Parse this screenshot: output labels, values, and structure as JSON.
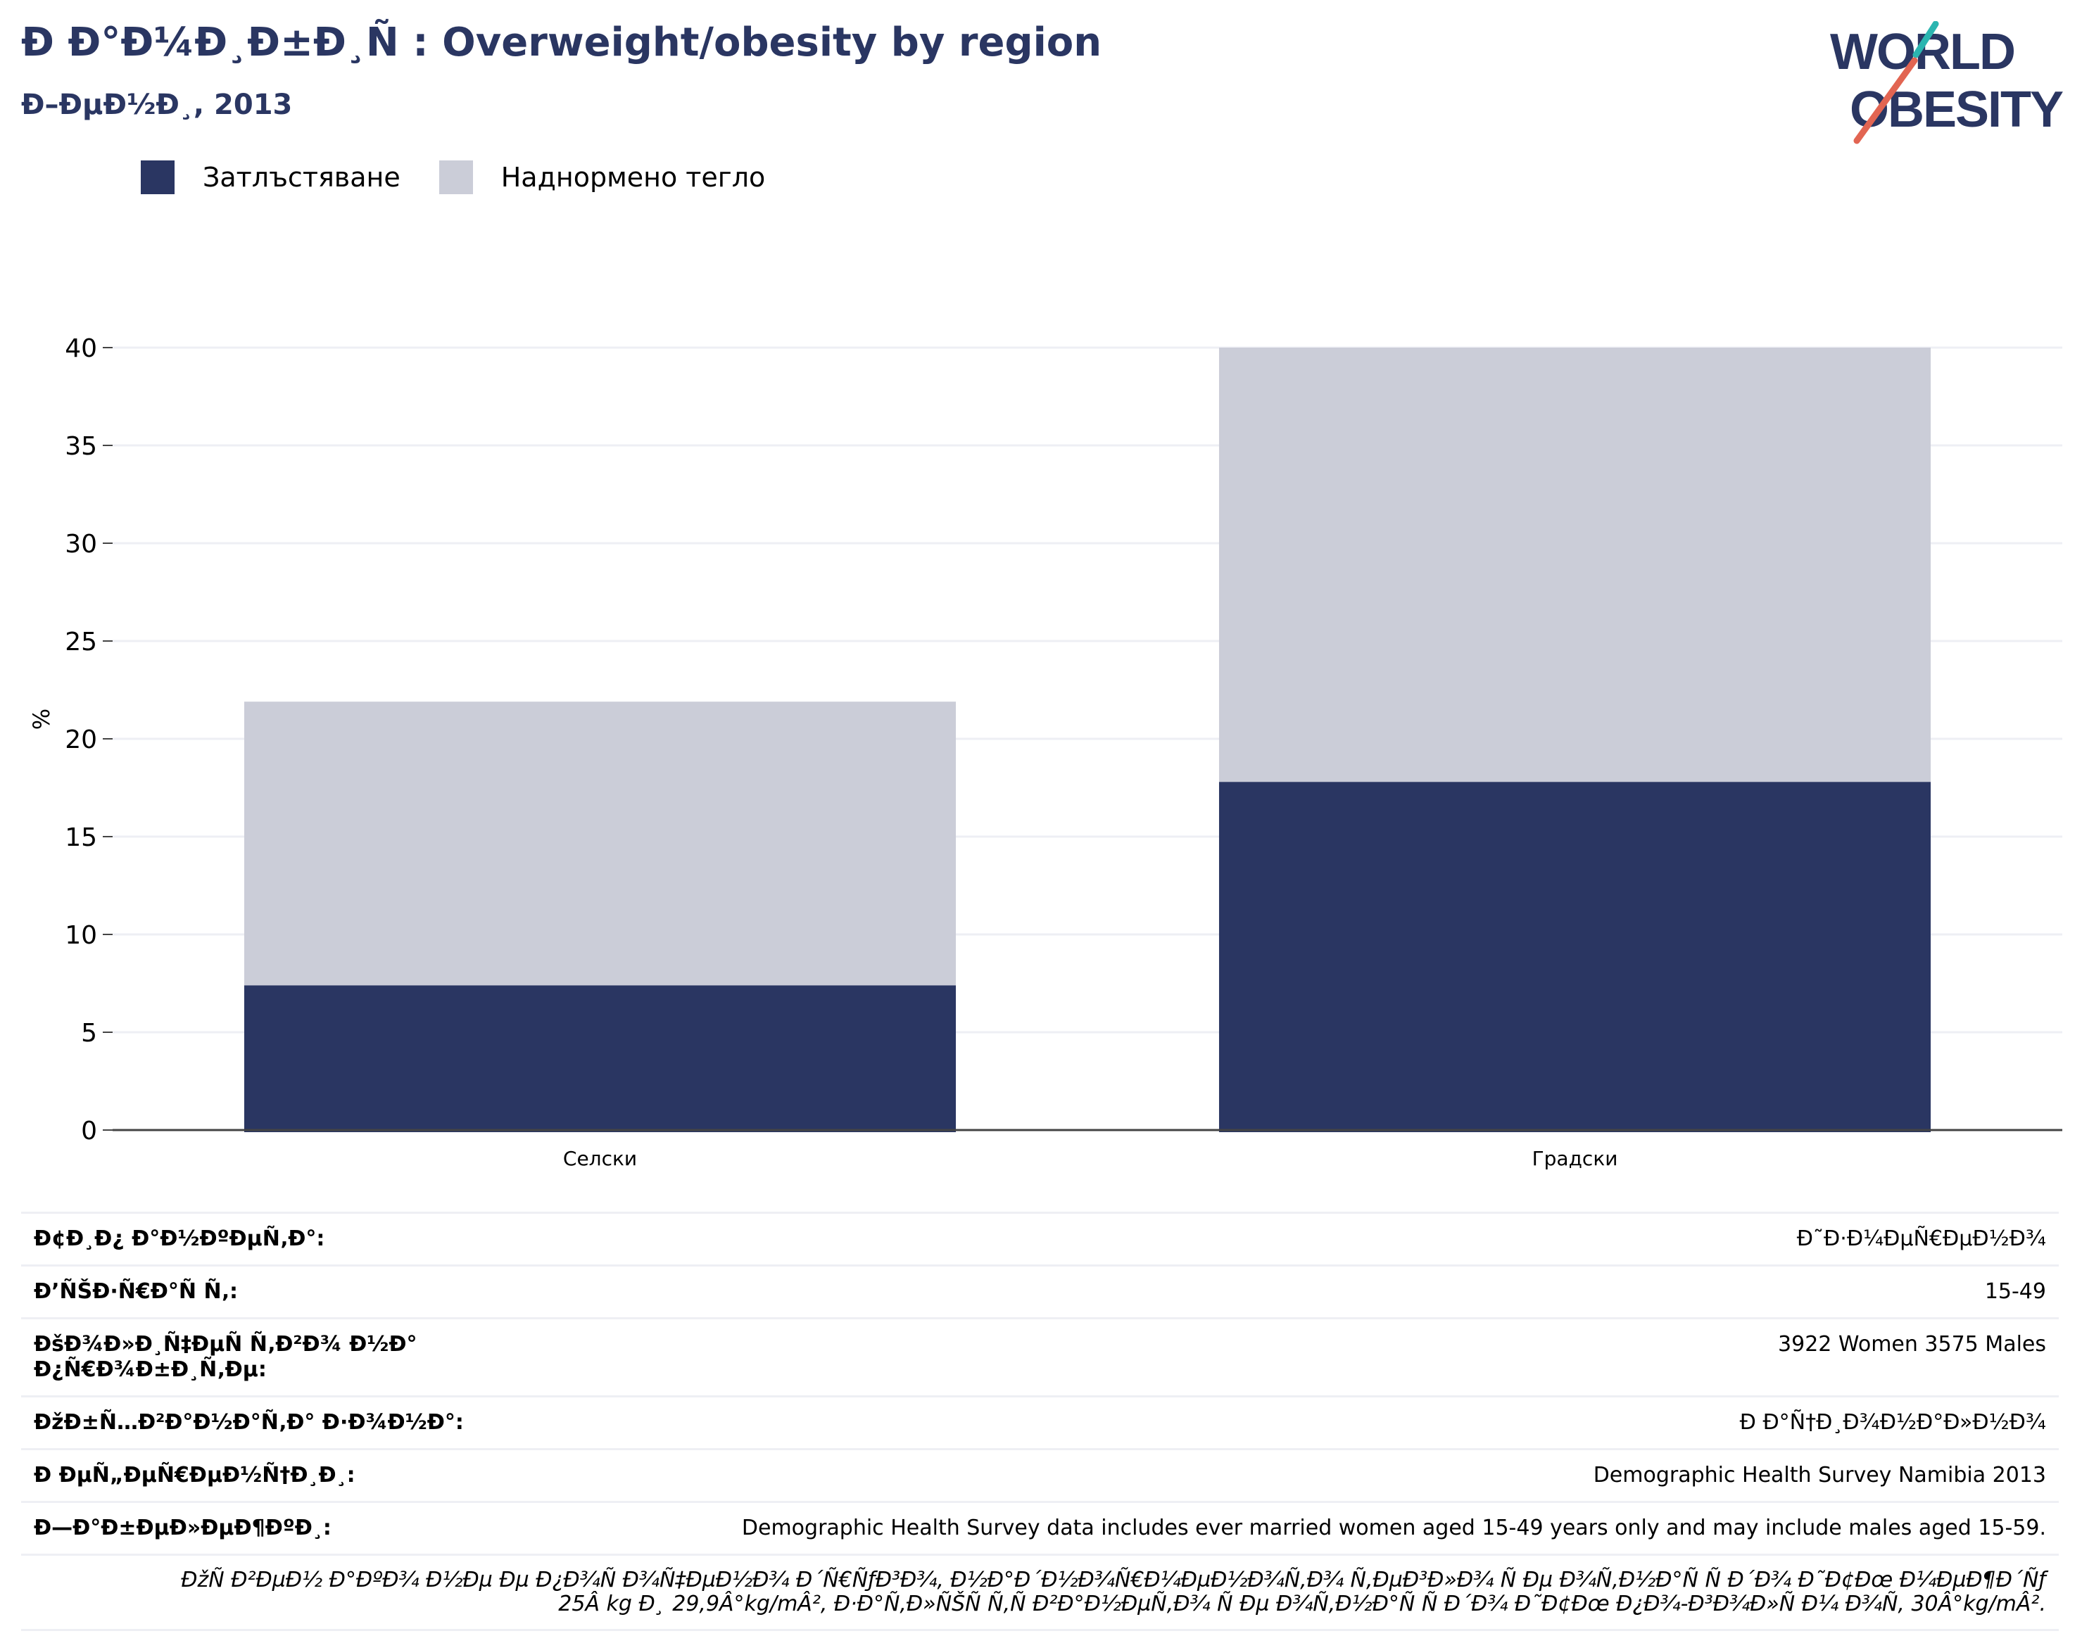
{
  "header": {
    "title": "Ð  Ð°Ð¼Ð¸Ð±Ð¸Ñ : Overweight/obesity by region",
    "subtitle": "Ð–ÐµÐ½Ð¸, 2013"
  },
  "logo": {
    "line1": "WORLD",
    "line2": "OBESITY"
  },
  "colors": {
    "obesity": "#2a3662",
    "overweight": "#cbcdd8",
    "grid": "#eeeff4",
    "axis": "#444444",
    "title": "#2a3662"
  },
  "chart_data": {
    "type": "bar",
    "stacked": true,
    "categories": [
      "Селски",
      "Градски"
    ],
    "series": [
      {
        "name": "Затлъстяване",
        "values": [
          7.4,
          17.8
        ]
      },
      {
        "name": "Наднормено тегло",
        "values": [
          14.5,
          22.2
        ]
      }
    ],
    "ylabel": "%",
    "yticks": [
      0,
      5,
      10,
      15,
      20,
      25,
      30,
      35,
      40
    ],
    "ylim": [
      0,
      40
    ],
    "grid": true,
    "legend": "top-left"
  },
  "info": {
    "rows": [
      {
        "key": "Ð¢Ð¸Ð¿ Ð°Ð½ÐºÐµÑ‚Ð°:",
        "value": "Ð˜Ð·Ð¼ÐµÑ€ÐµÐ½Ð¾"
      },
      {
        "key": "Ð’ÑŠÐ·Ñ€Ð°Ñ Ñ‚:",
        "value": "15-49"
      },
      {
        "key": "ÐšÐ¾Ð»Ð¸Ñ‡ÐµÑ Ñ‚Ð²Ð¾ Ð½Ð° Ð¿Ñ€Ð¾Ð±Ð¸Ñ‚Ðµ:",
        "value": "3922 Women 3575 Males"
      },
      {
        "key": "ÐžÐ±Ñ…Ð²Ð°Ð½Ð°Ñ‚Ð° Ð·Ð¾Ð½Ð°:",
        "value": "Ð  Ð°Ñ†Ð¸Ð¾Ð½Ð°Ð»Ð½Ð¾"
      },
      {
        "key": "Ð ÐµÑ„ÐµÑ€ÐµÐ½Ñ†Ð¸Ð¸:",
        "value": "Demographic Health Survey Namibia 2013"
      },
      {
        "key": "Ð—Ð°Ð±ÐµÐ»ÐµÐ¶ÐºÐ¸:",
        "value": "Demographic Health Survey data includes ever married women aged 15-49 years only and may include males aged 15-59."
      }
    ],
    "note_line1": "ÐžÑ Ð²ÐµÐ½ Ð°ÐºÐ¾ Ð½Ðµ Ðµ Ð¿Ð¾Ñ Ð¾Ñ‡ÐµÐ½Ð¾ Ð´Ñ€ÑƒÐ³Ð¾, Ð½Ð°Ð´Ð½Ð¾Ñ€Ð¼ÐµÐ½Ð¾Ñ‚Ð¾ Ñ‚ÐµÐ³Ð»Ð¾ Ñ Ðµ Ð¾Ñ‚Ð½Ð°Ñ Ñ  Ð´Ð¾ Ð˜Ð¢Ðœ Ð¼ÐµÐ¶Ð´Ñƒ",
    "note_line2": "25Â kg Ð¸ 29,9Â°kg/mÂ², Ð·Ð°Ñ‚Ð»ÑŠÑ Ñ‚Ñ Ð²Ð°Ð½ÐµÑ‚Ð¾ Ñ Ðµ Ð¾Ñ‚Ð½Ð°Ñ Ñ  Ð´Ð¾ Ð˜Ð¢Ðœ Ð¿Ð¾-Ð³Ð¾Ð»Ñ Ð¼ Ð¾Ñ‚ 30Â°kg/mÂ²."
  }
}
